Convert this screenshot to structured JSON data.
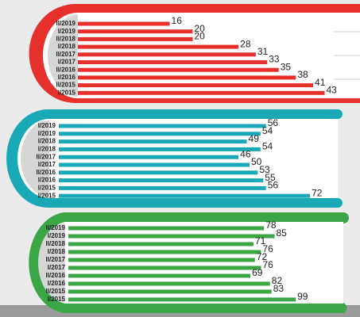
{
  "chart_data": [
    {
      "type": "bar",
      "color": "#e5302b",
      "categories": [
        "II/2019",
        "I/2019",
        "II/2018",
        "I/2018",
        "II/2017",
        "I/2017",
        "II/2016",
        "I/2016",
        "II/2015",
        "I/2015"
      ],
      "values": [
        16,
        20,
        20,
        28,
        31,
        33,
        35,
        38,
        41,
        43
      ]
    },
    {
      "type": "bar",
      "color": "#19a9b6",
      "categories": [
        "I/2019",
        "I/2019",
        "I/2018",
        "I/2018",
        "II/2017",
        "I/2017",
        "II/2016",
        "I/2016",
        "I/2015",
        "I/2015"
      ],
      "values": [
        56,
        54,
        49,
        54,
        46,
        50,
        53,
        55,
        56,
        72
      ]
    },
    {
      "type": "bar",
      "color": "#3aa646",
      "categories": [
        "II/2019",
        "I/2019",
        "II/2018",
        "I/2018",
        "II/2017",
        "I/2017",
        "II/2016",
        "I/2016",
        "II/2015",
        "I/2015"
      ],
      "values": [
        78,
        85,
        71,
        76,
        72,
        76,
        69,
        82,
        83,
        99
      ]
    }
  ]
}
